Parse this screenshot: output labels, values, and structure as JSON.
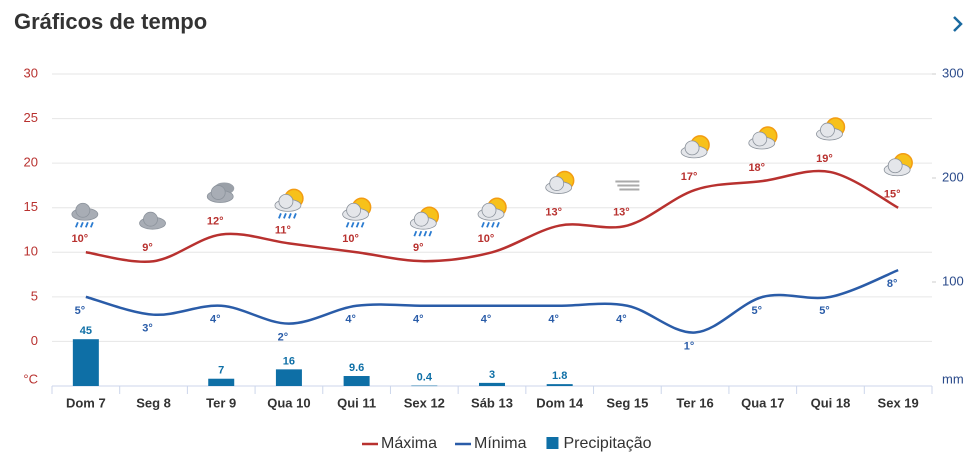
{
  "chart_data": {
    "type": "weather",
    "title": "Gráficos de tempo",
    "categories": [
      "Dom 7",
      "Seg 8",
      "Ter 9",
      "Qua 10",
      "Qui 11",
      "Sex 12",
      "Sáb 13",
      "Dom 14",
      "Seg 15",
      "Ter 16",
      "Qua 17",
      "Qui 18",
      "Sex 19"
    ],
    "series": [
      {
        "name": "Máxima",
        "type": "line",
        "color": "#b8312f",
        "values": [
          10,
          9,
          12,
          11,
          10,
          9,
          10,
          13,
          13,
          17,
          18,
          19,
          15
        ],
        "value_labels": [
          "10°",
          "9°",
          "12°",
          "11°",
          "10°",
          "9°",
          "10°",
          "13°",
          "13°",
          "17°",
          "18°",
          "19°",
          "15°"
        ]
      },
      {
        "name": "Mínima",
        "type": "line",
        "color": "#2a5ca8",
        "values": [
          5,
          3,
          4,
          2,
          4,
          4,
          4,
          4,
          4,
          1,
          5,
          5,
          8
        ],
        "value_labels": [
          "5°",
          "3°",
          "4°",
          "2°",
          "4°",
          "4°",
          "4°",
          "4°",
          "4°",
          "1°",
          "5°",
          "5°",
          "8°"
        ]
      },
      {
        "name": "Precipitação",
        "type": "bar",
        "color": "#0e6fa6",
        "axis": "y2",
        "values": [
          45,
          null,
          7,
          16,
          9.6,
          0.4,
          3,
          1.8,
          null,
          null,
          null,
          null,
          null
        ]
      }
    ],
    "ylim": [
      -5,
      30
    ],
    "yticks": [
      0,
      5,
      10,
      15,
      20,
      25,
      30
    ],
    "y_unit": "°C",
    "y2lim": [
      0,
      300
    ],
    "y2ticks": [
      100,
      200,
      300
    ],
    "y2_unit": "mm",
    "grid": true
  }
}
